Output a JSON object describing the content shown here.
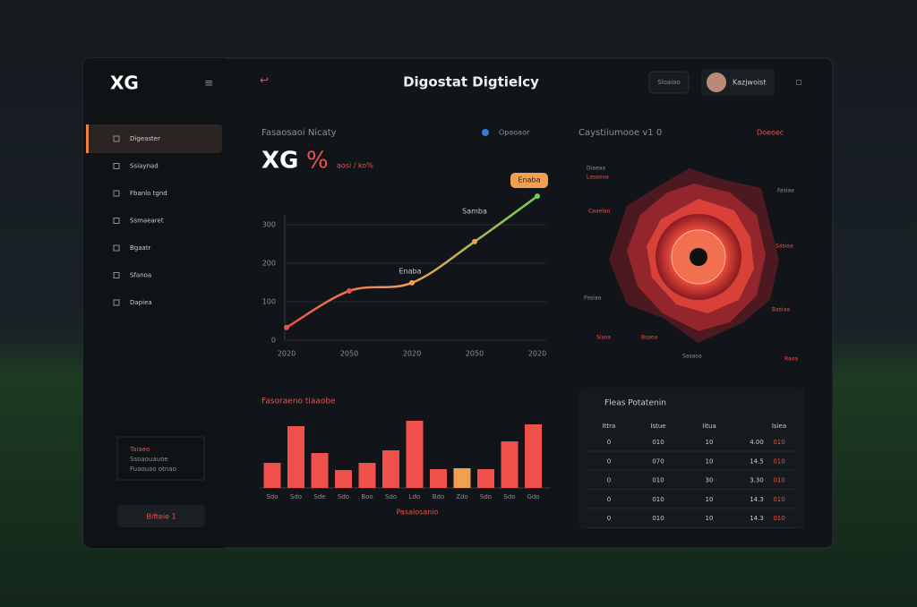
{
  "header": {
    "logo": "XG",
    "title": "Digostat Digtielcy",
    "search": "Sloaiao",
    "user": "Kazjwoist"
  },
  "sidebar": {
    "items": [
      "Digeaster",
      "Ssiaynad",
      "Fbanlo tgnd",
      "Ssmaearet",
      "Bgaatr",
      "Sfanoa",
      "Dapiea"
    ],
    "note": [
      "Taiaeo",
      "Ssoaouauoe",
      "Fuaouao otnao"
    ],
    "button": "Bifteie 1"
  },
  "chart_data": [
    {
      "type": "line",
      "title": "Fasaosaoi Nicaty",
      "headline": "XG",
      "headline_unit": "%",
      "subtitle": "aosi / ko%",
      "filter": "Opaoaor",
      "annotations": [
        "Enaba",
        "Samba",
        "Enaba"
      ],
      "categories": [
        "2020",
        "2050",
        "2020",
        "2050",
        "2020"
      ],
      "values": [
        33,
        128,
        149,
        256,
        374
      ],
      "ylim": [
        0,
        400
      ],
      "yticks": [
        0,
        100,
        200,
        300
      ],
      "grid": true,
      "colors": [
        "#f0504a",
        "#f0a050",
        "#6ccf5a"
      ]
    },
    {
      "type": "bar",
      "title": "Fasoraeno tiaaobe",
      "x_label": "Pasalosanio",
      "categories": [
        "Sdo",
        "Sdo",
        "Sde",
        "Sdo",
        "Boo",
        "Sdo",
        "Ldo",
        "Bdo",
        "Zdo",
        "Sdo",
        "Sdo",
        "Gdo"
      ],
      "values": [
        28,
        69,
        39,
        20,
        28,
        42,
        75,
        21,
        22,
        21,
        52,
        71
      ],
      "ylim": [
        0,
        100
      ],
      "colors": [
        "#f0504a",
        "#f0504a",
        "#f0504a",
        "#f0504a",
        "#f0504a",
        "#f0504a",
        "#f0504a",
        "#f0504a",
        "#f0a050",
        "#f0504a",
        "#f0504a",
        "#f0504a"
      ]
    }
  ],
  "radar": {
    "title": "Caystiiumooe v1 0",
    "filter": "Doeoec",
    "labels": [
      "Diaeaa",
      "Lasaooa",
      "Caaelao",
      "Fasiaa",
      "Sasiaa",
      "Basiaa",
      "Pasiaa",
      "Sisoa",
      "Bsaoa",
      "Sasaoa",
      "Raoa"
    ]
  },
  "table": {
    "title": "Fleas Potatenin",
    "columns": [
      "Ittra",
      "Istue",
      "Iitua",
      "Isiea"
    ],
    "rows": [
      [
        "0",
        "010",
        "10",
        "4.00",
        "010"
      ],
      [
        "0",
        "070",
        "10",
        "14.5",
        "010"
      ],
      [
        "0",
        "010",
        "30",
        "3.30",
        "010"
      ],
      [
        "0",
        "010",
        "10",
        "14.3",
        "010"
      ],
      [
        "0",
        "010",
        "10",
        "14.3",
        "010"
      ]
    ]
  }
}
